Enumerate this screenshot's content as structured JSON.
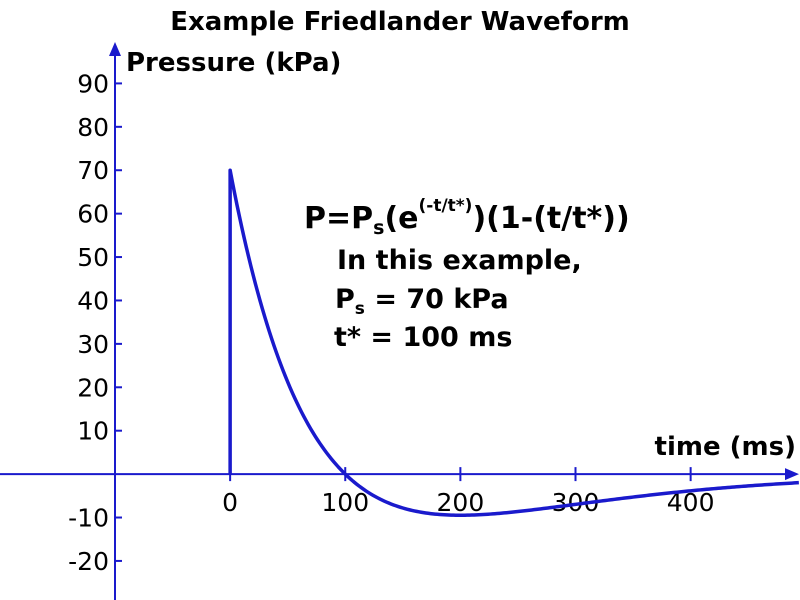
{
  "chart_data": {
    "type": "line",
    "title": "Example Friedlander Waveform",
    "ylabel": "Pressure (kPa)",
    "xlabel": "time (ms)",
    "x_ticks": [
      "0",
      "100",
      "200",
      "300",
      "400"
    ],
    "x_tick_values": [
      0,
      100,
      200,
      300,
      400
    ],
    "y_ticks": [
      "90",
      "80",
      "70",
      "60",
      "50",
      "40",
      "30",
      "20",
      "10",
      "-10",
      "-20"
    ],
    "y_tick_values": [
      90,
      80,
      70,
      60,
      50,
      40,
      30,
      20,
      10,
      -10,
      -20
    ],
    "xlim": [
      -100,
      495
    ],
    "ylim": [
      -29,
      100
    ],
    "series": [
      {
        "color": "#1a1acc",
        "function": "friedlander",
        "Ps": 70,
        "tstar": 100,
        "x_range": [
          0,
          495
        ]
      }
    ],
    "axis_color": "#1a1acc",
    "formula": {
      "lhs": "P=P",
      "lhs_sub": "s",
      "open": "(e",
      "exponent": "(-t/t*)",
      "rest": ")(1-(t/t*))"
    },
    "annotations": {
      "line1": "In this example,",
      "ps_main": "P",
      "ps_sub": "s",
      "ps_rest": " = 70 kPa",
      "tstar": "t* = 100 ms"
    }
  }
}
